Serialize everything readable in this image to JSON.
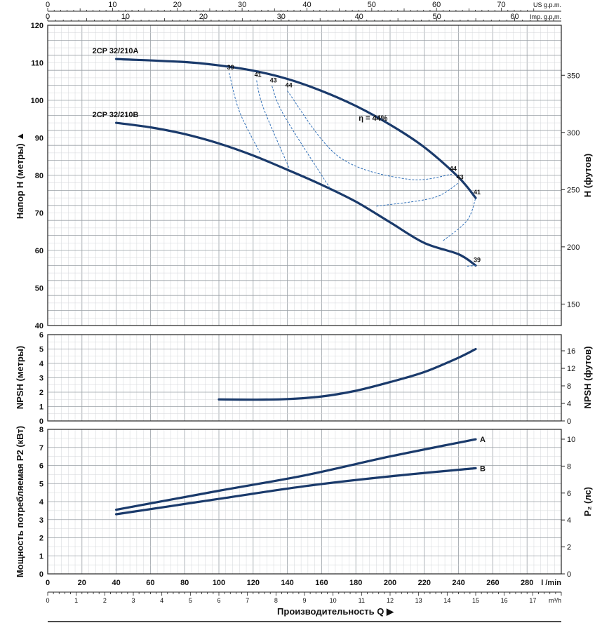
{
  "chart_data": [
    {
      "type": "line",
      "panel": "head",
      "ylabel": "Напор H (метры)",
      "ylabel_right": "H (футов)",
      "ylim": [
        40,
        120
      ],
      "yticks": [
        40,
        50,
        60,
        70,
        80,
        90,
        100,
        110,
        120
      ],
      "yticks_right": [
        150,
        200,
        250,
        300,
        350
      ],
      "series": [
        {
          "name": "2CP 32/210A",
          "x": [
            40,
            80,
            100,
            120,
            140,
            160,
            180,
            200,
            220,
            240,
            250
          ],
          "y": [
            111,
            110.2,
            109.3,
            107.9,
            105.7,
            102.5,
            98.5,
            93.5,
            87.5,
            79.5,
            74
          ]
        },
        {
          "name": "2CP 32/210B",
          "x": [
            40,
            60,
            80,
            100,
            120,
            140,
            160,
            180,
            200,
            220,
            240,
            250
          ],
          "y": [
            94,
            92.8,
            91,
            88.5,
            85.3,
            81.5,
            77.5,
            73,
            67.5,
            62,
            59,
            56
          ]
        }
      ],
      "efficiency_curves": [
        {
          "label": "39",
          "points": [
            [
              106,
              107.3
            ],
            [
              112,
              97
            ],
            [
              124,
              86
            ]
          ]
        },
        {
          "label": "41",
          "points": [
            [
              122,
              105.3
            ],
            [
              126,
              98
            ],
            [
              141,
              82
            ]
          ]
        },
        {
          "label": "43",
          "points": [
            [
              131,
              103.8
            ],
            [
              138,
              96
            ],
            [
              165,
              76.5
            ]
          ]
        },
        {
          "label": "44",
          "points": [
            [
              140,
              102.5
            ],
            [
              170,
              85
            ],
            [
              210,
              79
            ],
            [
              236,
              80.3
            ]
          ]
        },
        {
          "label": "43",
          "points": [
            [
              192,
              71.8
            ],
            [
              225,
              74
            ],
            [
              240,
              78
            ]
          ]
        },
        {
          "label": "41",
          "points": [
            [
              231,
              62.6
            ],
            [
              245,
              68
            ],
            [
              250,
              74
            ]
          ]
        },
        {
          "label": "39",
          "points": [
            [
              245,
              55.8
            ],
            [
              250,
              56
            ]
          ]
        }
      ],
      "annotations": [
        {
          "text": "39",
          "x": 106,
          "y": 107.3
        },
        {
          "text": "41",
          "x": 122,
          "y": 105.3
        },
        {
          "text": "43",
          "x": 131,
          "y": 103.8
        },
        {
          "text": "44",
          "x": 140,
          "y": 102.5
        },
        {
          "text": "η = 44%",
          "x": 180,
          "y": 95
        },
        {
          "text": "44",
          "x": 236,
          "y": 80.3
        },
        {
          "text": "43",
          "x": 240,
          "y": 78
        },
        {
          "text": "41",
          "x": 250,
          "y": 74
        },
        {
          "text": "39",
          "x": 250,
          "y": 56
        }
      ],
      "top_axes": [
        {
          "unit": "US g.p.m.",
          "ticks": [
            0,
            10,
            20,
            30,
            40,
            50,
            60,
            70
          ]
        },
        {
          "unit": "Imp. g.p.m.",
          "ticks": [
            0,
            10,
            20,
            30,
            40,
            50,
            60
          ]
        }
      ]
    },
    {
      "type": "line",
      "panel": "npsh",
      "ylabel": "NPSH (метры)",
      "ylabel_right": "NPSH (футов)",
      "ylim": [
        0,
        6
      ],
      "yticks": [
        0,
        1,
        2,
        3,
        4,
        5,
        6
      ],
      "yticks_right": [
        0,
        4,
        8,
        12,
        16
      ],
      "series": [
        {
          "name": "",
          "x": [
            100,
            120,
            140,
            160,
            180,
            200,
            220,
            240,
            250
          ],
          "y": [
            1.5,
            1.48,
            1.52,
            1.7,
            2.1,
            2.7,
            3.4,
            4.4,
            5
          ]
        }
      ]
    },
    {
      "type": "line",
      "panel": "power",
      "ylabel": "Мощность потребляемая P2 (кВт)",
      "ylabel_right": "P₂ (лс)",
      "ylim": [
        0,
        8
      ],
      "yticks": [
        0,
        1,
        2,
        3,
        4,
        5,
        6,
        7,
        8
      ],
      "yticks_right": [
        0,
        2,
        4,
        6,
        8,
        10
      ],
      "series": [
        {
          "name": "A",
          "x": [
            40,
            100,
            150,
            200,
            250
          ],
          "y": [
            3.55,
            4.6,
            5.45,
            6.5,
            7.45
          ]
        },
        {
          "name": "B",
          "x": [
            40,
            100,
            150,
            200,
            250
          ],
          "y": [
            3.3,
            4.15,
            4.85,
            5.4,
            5.85
          ]
        }
      ],
      "xlabel": "Производительность Q",
      "xunit": "l /min",
      "xticks": [
        0,
        20,
        40,
        60,
        80,
        100,
        120,
        140,
        160,
        180,
        200,
        220,
        240,
        260,
        280
      ],
      "xunit2": "m³/h",
      "xticks2": [
        0,
        1,
        2,
        3,
        4,
        5,
        6,
        7,
        8,
        9,
        10,
        11,
        12,
        13,
        14,
        15,
        16,
        17
      ]
    }
  ]
}
